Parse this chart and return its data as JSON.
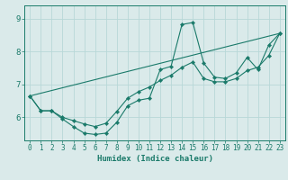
{
  "xlabel": "Humidex (Indice chaleur)",
  "bg_color": "#daeaea",
  "line_color": "#1a7a6a",
  "grid_color": "#b8d8d8",
  "xlim": [
    -0.5,
    23.5
  ],
  "ylim": [
    5.3,
    9.4
  ],
  "yticks": [
    6,
    7,
    8,
    9
  ],
  "xticks": [
    0,
    1,
    2,
    3,
    4,
    5,
    6,
    7,
    8,
    9,
    10,
    11,
    12,
    13,
    14,
    15,
    16,
    17,
    18,
    19,
    20,
    21,
    22,
    23
  ],
  "curve1_x": [
    0,
    1,
    2,
    3,
    4,
    5,
    6,
    7,
    8,
    9,
    10,
    11,
    12,
    13,
    14,
    15,
    16,
    17,
    18,
    19,
    20,
    21,
    22,
    23
  ],
  "curve1_y": [
    6.65,
    6.2,
    6.2,
    5.95,
    5.72,
    5.52,
    5.48,
    5.52,
    5.85,
    6.35,
    6.52,
    6.58,
    7.45,
    7.55,
    8.82,
    8.88,
    7.65,
    7.22,
    7.18,
    7.35,
    7.82,
    7.45,
    8.2,
    8.55
  ],
  "curve2_x": [
    0,
    1,
    2,
    3,
    4,
    5,
    6,
    7,
    8,
    9,
    10,
    11,
    12,
    13,
    14,
    15,
    16,
    17,
    18,
    19,
    20,
    21,
    22,
    23
  ],
  "curve2_y": [
    6.65,
    6.2,
    6.2,
    6.0,
    5.9,
    5.8,
    5.72,
    5.82,
    6.18,
    6.58,
    6.78,
    6.92,
    7.12,
    7.28,
    7.52,
    7.68,
    7.18,
    7.08,
    7.08,
    7.18,
    7.42,
    7.52,
    7.88,
    8.55
  ],
  "curve3_x": [
    0,
    23
  ],
  "curve3_y": [
    6.65,
    8.55
  ]
}
